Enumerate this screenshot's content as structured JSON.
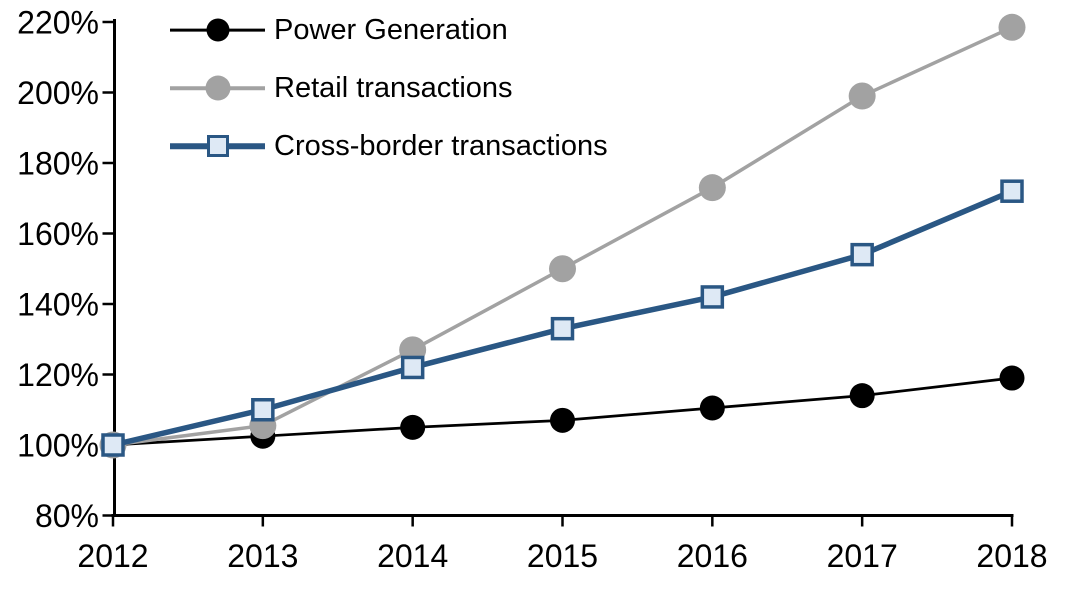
{
  "chart_data": {
    "type": "line",
    "title": "",
    "xlabel": "",
    "ylabel": "",
    "categories": [
      "2012",
      "2013",
      "2014",
      "2015",
      "2016",
      "2017",
      "2018"
    ],
    "series": [
      {
        "name": "Power Generation",
        "values": [
          100,
          102.5,
          105,
          107,
          110.5,
          114,
          119
        ],
        "color": "#000000",
        "marker": "circle",
        "marker_fill": "#000000",
        "line_width": 2.75,
        "marker_size": 25
      },
      {
        "name": "Retail transactions",
        "values": [
          100,
          105.5,
          127,
          150,
          173,
          199,
          218.5
        ],
        "color": "#A2A2A2",
        "marker": "circle",
        "marker_fill": "#A2A2A2",
        "line_width": 3.5,
        "marker_size": 27
      },
      {
        "name": "Cross-border transactions",
        "values": [
          100,
          110,
          122,
          133,
          142,
          154,
          172
        ],
        "color": "#2A5784",
        "marker": "square",
        "marker_fill": "#DEE9F5",
        "line_width": 5.5,
        "marker_size": 20
      }
    ],
    "ylim": [
      80,
      220
    ],
    "ytick_step": 20,
    "ytick_labels": [
      "80%",
      "100%",
      "120%",
      "140%",
      "160%",
      "180%",
      "200%",
      "220%"
    ],
    "grid": false,
    "legend_position": "top-left",
    "axis_color": "#000000",
    "background": "#FFFFFF"
  }
}
